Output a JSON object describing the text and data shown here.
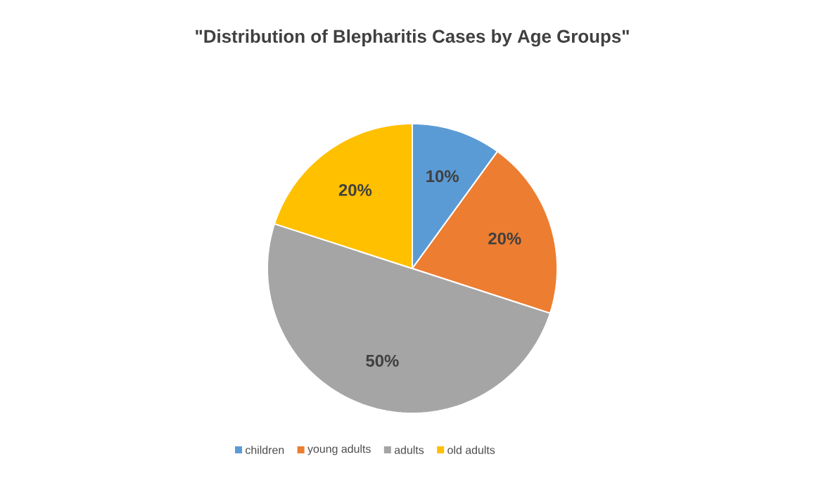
{
  "chart_data": {
    "type": "pie",
    "title": "\"Distribution of Blepharitis Cases by Age Groups\"",
    "categories": [
      "children",
      "young adults",
      "adults",
      "old adults"
    ],
    "values": [
      10,
      20,
      50,
      20
    ],
    "colors": [
      "#5b9bd5",
      "#ed7d31",
      "#a5a5a5",
      "#ffc000"
    ],
    "value_labels": [
      "10%",
      "20%",
      "50%",
      "20%"
    ],
    "legend": "bottom"
  }
}
